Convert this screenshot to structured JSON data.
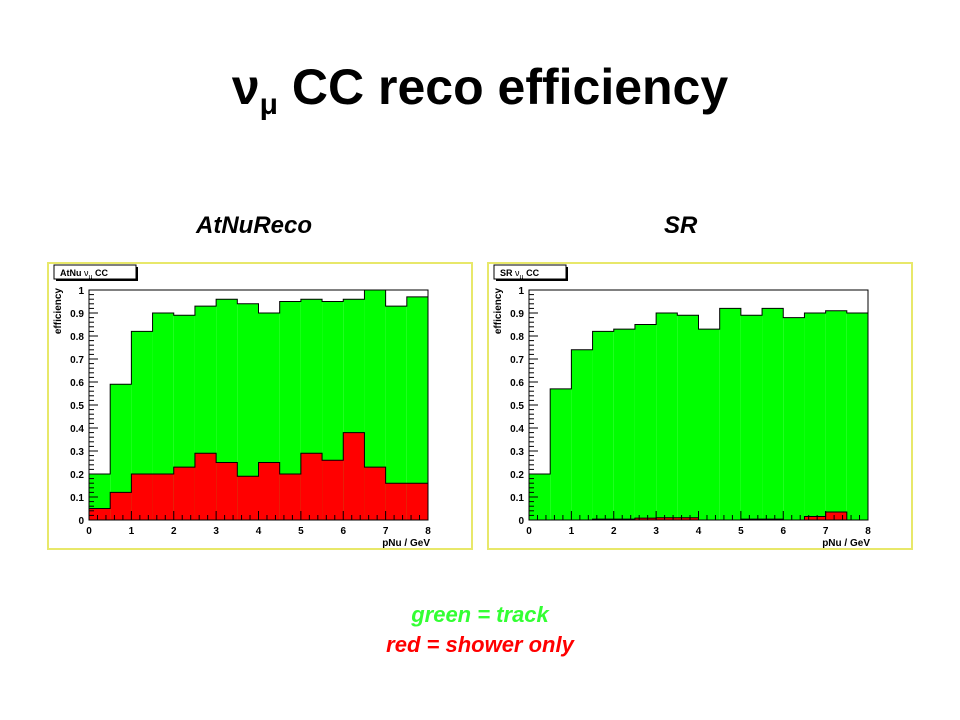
{
  "page": {
    "title": "CC reco efficiency",
    "title_nu": "ν",
    "title_mu": "μ",
    "subtitles": [
      "AtNuReco",
      "SR"
    ],
    "legend_notes": {
      "green": "green = track",
      "red": "red = shower only"
    }
  },
  "colors": {
    "track": "#00ff00",
    "shower": "#ff0000",
    "frame": "#e8e86a",
    "green_text": "#33ff33",
    "red_text": "#ff0000"
  },
  "chart_data": [
    {
      "type": "bar",
      "histogram": true,
      "box_label_main": "AtNu",
      "box_label_nu": "ν",
      "box_label_mu": "μ",
      "box_label_tail": "CC",
      "xlabel": "pNu / GeV",
      "ylabel": "efficiency",
      "xlim": [
        0,
        8
      ],
      "ylim": [
        0,
        1
      ],
      "x_ticks": [
        "0",
        "1",
        "2",
        "3",
        "4",
        "5",
        "6",
        "7",
        "8"
      ],
      "y_ticks": [
        "0",
        "0.1",
        "0.2",
        "0.3",
        "0.4",
        "0.5",
        "0.6",
        "0.7",
        "0.8",
        "0.9",
        "1"
      ],
      "bin_edges": [
        0,
        0.5,
        1,
        1.5,
        2,
        2.5,
        3,
        3.5,
        4,
        4.5,
        5,
        5.5,
        6,
        6.5,
        7,
        7.5,
        8
      ],
      "series": [
        {
          "key": "track",
          "values": [
            0.2,
            0.59,
            0.82,
            0.9,
            0.89,
            0.93,
            0.96,
            0.94,
            0.9,
            0.95,
            0.96,
            0.95,
            0.96,
            1.0,
            0.93,
            0.97
          ]
        },
        {
          "key": "shower",
          "values": [
            0.05,
            0.12,
            0.2,
            0.2,
            0.23,
            0.29,
            0.25,
            0.19,
            0.25,
            0.2,
            0.29,
            0.26,
            0.38,
            0.23,
            0.16,
            0.16
          ]
        }
      ]
    },
    {
      "type": "bar",
      "histogram": true,
      "box_label_main": "SR",
      "box_label_nu": "ν",
      "box_label_mu": "μ",
      "box_label_tail": "CC",
      "xlabel": "pNu / GeV",
      "ylabel": "efficiency",
      "xlim": [
        0,
        8
      ],
      "ylim": [
        0,
        1
      ],
      "x_ticks": [
        "0",
        "1",
        "2",
        "3",
        "4",
        "5",
        "6",
        "7",
        "8"
      ],
      "y_ticks": [
        "0",
        "0.1",
        "0.2",
        "0.3",
        "0.4",
        "0.5",
        "0.6",
        "0.7",
        "0.8",
        "0.9",
        "1"
      ],
      "bin_edges": [
        0,
        0.5,
        1,
        1.5,
        2,
        2.5,
        3,
        3.5,
        4,
        4.5,
        5,
        5.5,
        6,
        6.5,
        7,
        7.5,
        8
      ],
      "series": [
        {
          "key": "track",
          "values": [
            0.2,
            0.57,
            0.74,
            0.82,
            0.83,
            0.85,
            0.9,
            0.89,
            0.83,
            0.92,
            0.89,
            0.92,
            0.88,
            0.9,
            0.91,
            0.9
          ]
        },
        {
          "key": "shower",
          "values": [
            0.0,
            0.0,
            0.0,
            0.004,
            0.004,
            0.008,
            0.01,
            0.01,
            0.0,
            0.0,
            0.004,
            0.004,
            0.0,
            0.015,
            0.035,
            0.0
          ]
        }
      ]
    }
  ]
}
